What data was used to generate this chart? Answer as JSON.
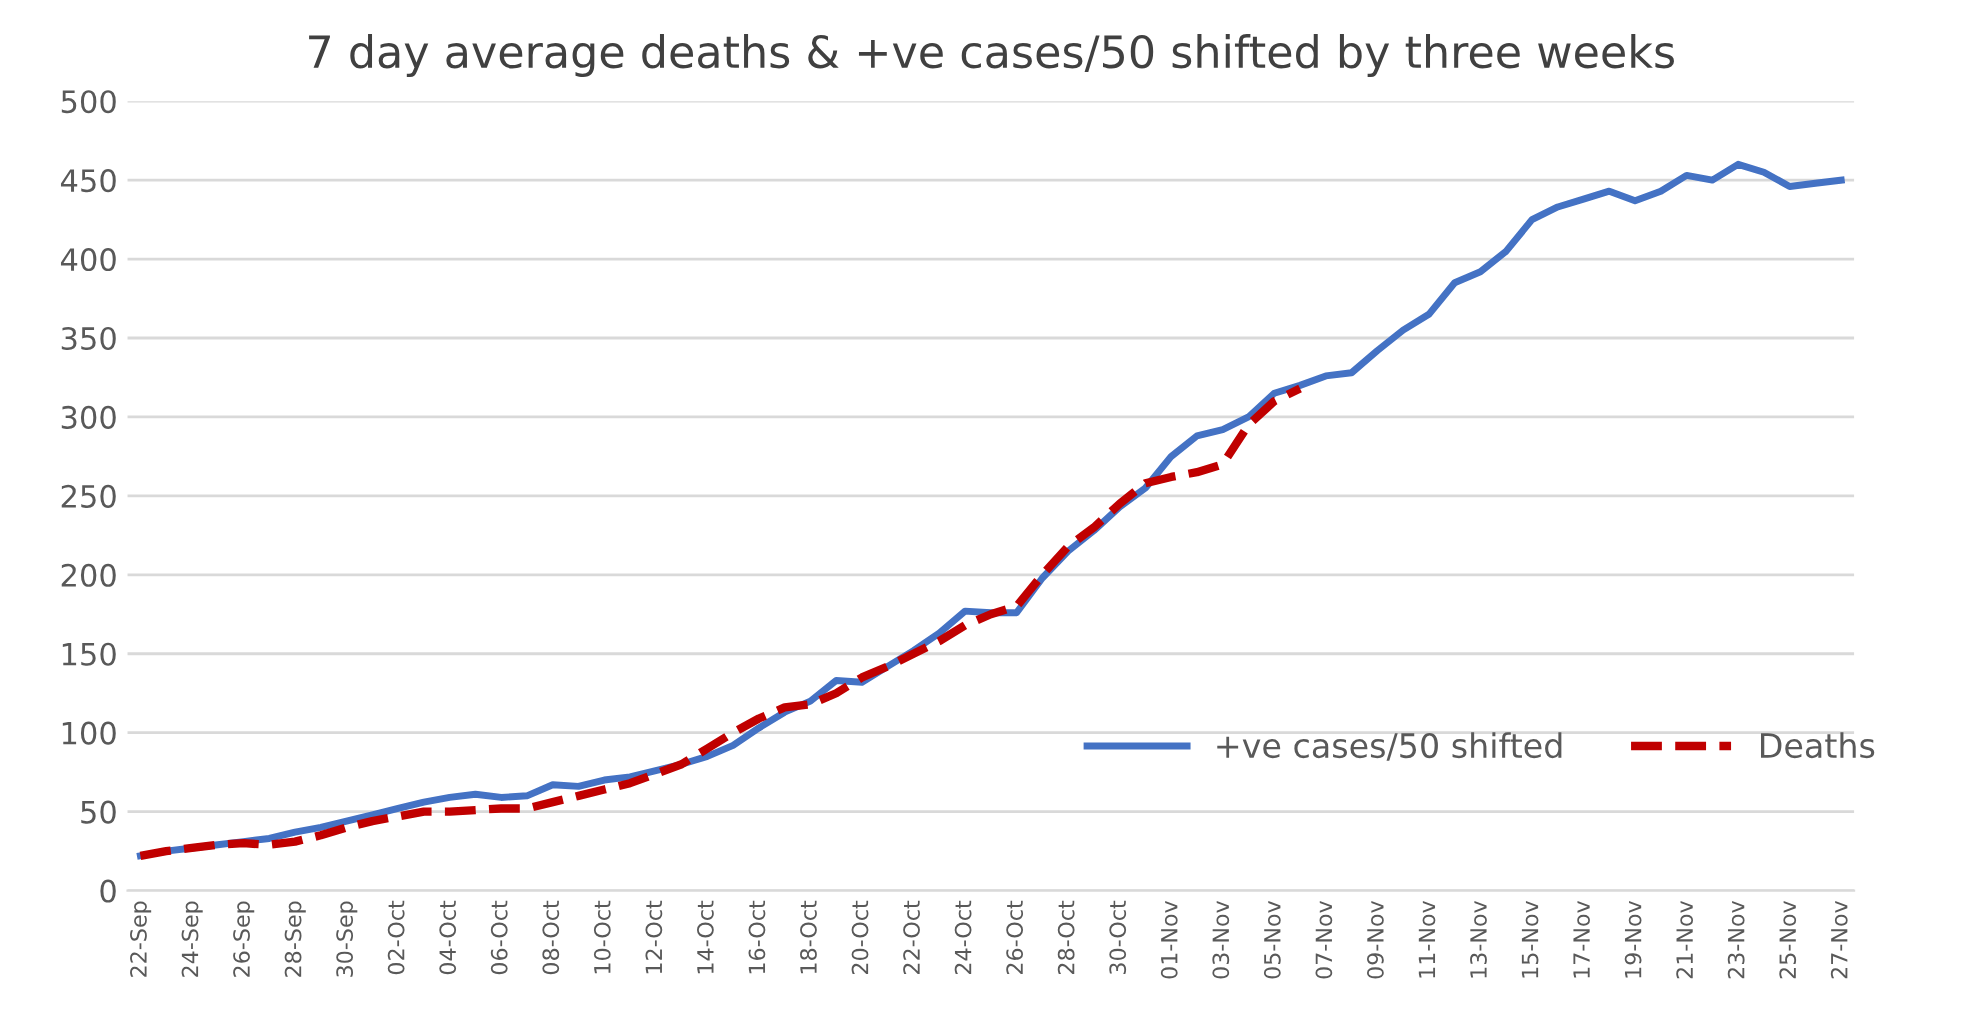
{
  "chart_data": {
    "type": "line",
    "title": "7 day average deaths & +ve cases/50 shifted by three weeks",
    "categories": [
      "22-Sep",
      null,
      "24-Sep",
      null,
      "26-Sep",
      null,
      "28-Sep",
      null,
      "30-Sep",
      null,
      "02-Oct",
      null,
      "04-Oct",
      null,
      "06-Oct",
      null,
      "08-Oct",
      null,
      "10-Oct",
      null,
      "12-Oct",
      null,
      "14-Oct",
      null,
      "16-Oct",
      null,
      "18-Oct",
      null,
      "20-Oct",
      null,
      "22-Oct",
      null,
      "24-Oct",
      null,
      "26-Oct",
      null,
      "28-Oct",
      null,
      "30-Oct",
      null,
      "01-Nov",
      null,
      "03-Nov",
      null,
      "05-Nov",
      null,
      "07-Nov",
      null,
      "09-Nov",
      null,
      "11-Nov",
      null,
      "13-Nov",
      null,
      "15-Nov",
      null,
      "17-Nov",
      null,
      "19-Nov",
      null,
      "21-Nov",
      null,
      "23-Nov",
      null,
      "25-Nov",
      null,
      "27-Nov"
    ],
    "series": [
      {
        "name": "+ve cases/50 shifted",
        "color": "#4472c4",
        "line_style": "solid",
        "values": [
          22,
          25,
          27,
          29,
          31,
          33,
          37,
          40,
          44,
          48,
          52,
          56,
          59,
          61,
          59,
          60,
          67,
          66,
          70,
          72,
          76,
          80,
          85,
          92,
          103,
          113,
          120,
          133,
          132,
          142,
          152,
          163,
          177,
          176,
          176,
          198,
          215,
          228,
          243,
          255,
          275,
          288,
          292,
          300,
          315,
          320,
          326,
          328,
          342,
          355,
          365,
          385,
          392,
          405,
          425,
          433,
          438,
          443,
          437,
          443,
          453,
          450,
          460,
          455,
          446,
          448,
          450
        ]
      },
      {
        "name": "Deaths",
        "color": "#c00000",
        "line_style": "dashed",
        "values": [
          22,
          25,
          27,
          29,
          30,
          29,
          31,
          35,
          40,
          44,
          47,
          50,
          50,
          51,
          52,
          52,
          56,
          60,
          64,
          68,
          74,
          80,
          90,
          100,
          109,
          116,
          118,
          125,
          135,
          142,
          150,
          158,
          168,
          175,
          180,
          200,
          218,
          230,
          245,
          258,
          262,
          265,
          270,
          295,
          310,
          318,
          null,
          null,
          null,
          null,
          null,
          null,
          null,
          null,
          null,
          null,
          null,
          null,
          null,
          null,
          null,
          null,
          null,
          null,
          null,
          null,
          null
        ]
      }
    ],
    "ylim": [
      0,
      500
    ],
    "yticks": [
      0,
      50,
      100,
      150,
      200,
      250,
      300,
      350,
      400,
      450,
      500
    ],
    "grid": "y",
    "legend": "right",
    "marker": "none"
  }
}
